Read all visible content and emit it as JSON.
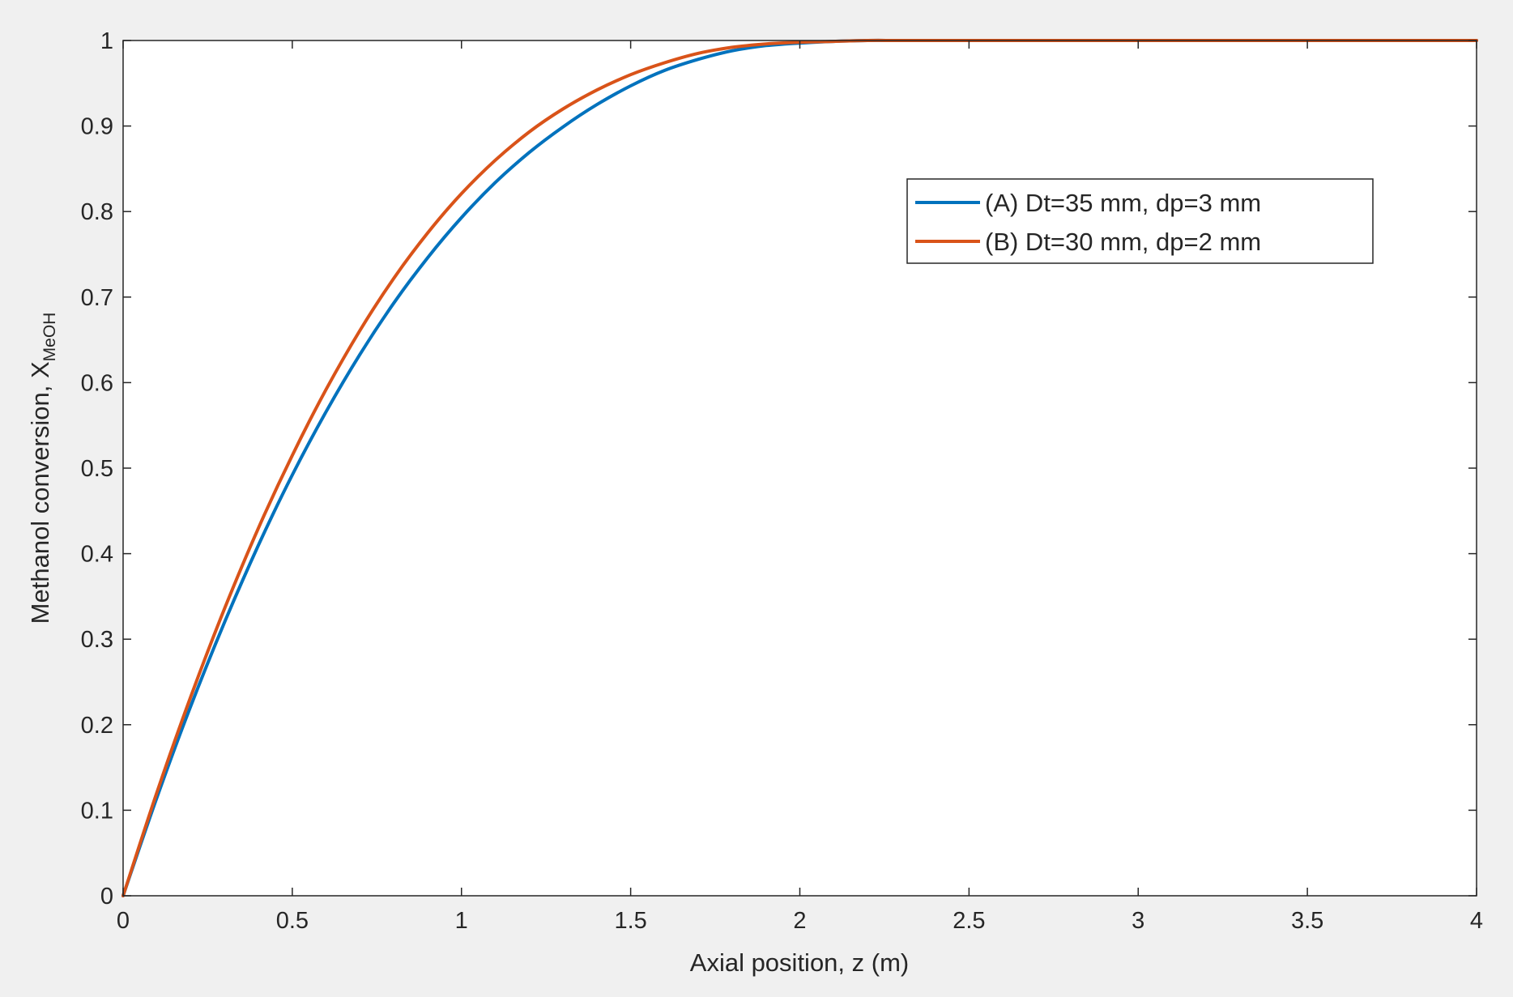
{
  "chart_data": {
    "type": "line",
    "title": "",
    "xlabel": "Axial position, z (m)",
    "ylabel_main": "Methanol  conversion,  X",
    "ylabel_sub": "MeOH",
    "xlim": [
      0,
      4
    ],
    "ylim": [
      0,
      1
    ],
    "xticks": [
      "0",
      "0.5",
      "1",
      "1.5",
      "2",
      "2.5",
      "3",
      "3.5",
      "4"
    ],
    "yticks": [
      "0",
      "0.1",
      "0.2",
      "0.3",
      "0.4",
      "0.5",
      "0.6",
      "0.7",
      "0.8",
      "0.9",
      "1"
    ],
    "grid": false,
    "legend_position": "top-right",
    "series": [
      {
        "name": "(A) Dt=35 mm, dp=3 mm",
        "color": "#0072BD",
        "x": [
          0,
          0.1,
          0.2,
          0.3,
          0.4,
          0.5,
          0.6,
          0.7,
          0.8,
          0.9,
          1.0,
          1.1,
          1.2,
          1.3,
          1.4,
          1.5,
          1.6,
          1.7,
          1.8,
          1.9,
          2.0,
          2.1,
          2.2,
          2.3,
          2.5,
          3.0,
          3.5,
          4.0
        ],
        "y": [
          0,
          0.115,
          0.222,
          0.32,
          0.41,
          0.492,
          0.566,
          0.633,
          0.693,
          0.746,
          0.793,
          0.834,
          0.869,
          0.899,
          0.925,
          0.947,
          0.965,
          0.978,
          0.988,
          0.994,
          0.997,
          0.999,
          1.0,
          1.0,
          1.0,
          1.0,
          1.0,
          1.0
        ]
      },
      {
        "name": "(B) Dt=30 mm, dp=2 mm",
        "color": "#D95319",
        "x": [
          0,
          0.1,
          0.2,
          0.3,
          0.4,
          0.5,
          0.6,
          0.7,
          0.8,
          0.9,
          1.0,
          1.1,
          1.2,
          1.3,
          1.4,
          1.5,
          1.6,
          1.7,
          1.8,
          1.9,
          2.0,
          2.1,
          2.2,
          2.3,
          2.5,
          3.0,
          3.5,
          4.0
        ],
        "y": [
          0,
          0.121,
          0.233,
          0.336,
          0.43,
          0.515,
          0.592,
          0.661,
          0.722,
          0.775,
          0.821,
          0.86,
          0.893,
          0.92,
          0.942,
          0.96,
          0.974,
          0.985,
          0.992,
          0.996,
          0.998,
          0.999,
          1.0,
          1.0,
          1.0,
          1.0,
          1.0,
          1.0
        ]
      }
    ]
  }
}
